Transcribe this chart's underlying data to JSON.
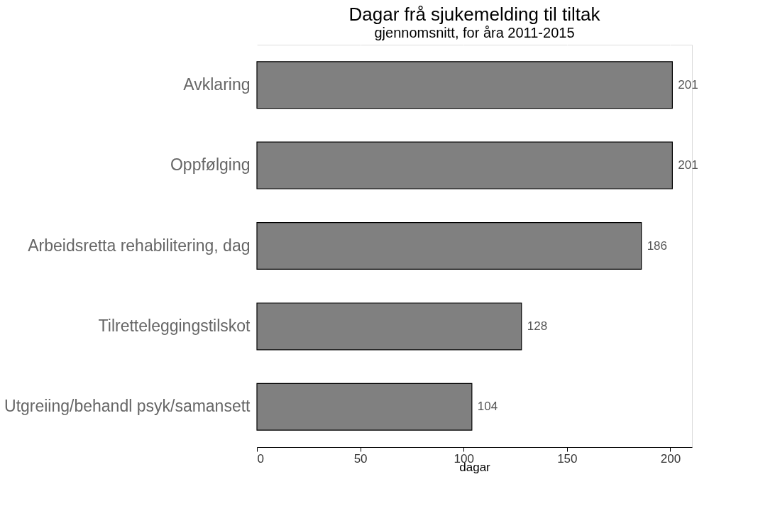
{
  "chart_data": {
    "type": "bar",
    "orientation": "horizontal",
    "title": "Dagar frå sjukemelding til tiltak",
    "subtitle": "gjennomsnitt, for åra 2011-2015",
    "xlabel": "dagar",
    "categories": [
      "Avklaring",
      "Oppfølging",
      "Arbeidsretta rehabilitering, dag",
      "Tilretteleggingstilskot",
      "Utgreiing/behandl psyk/samansett"
    ],
    "values": [
      201,
      201,
      186,
      128,
      104
    ],
    "color": "#808080",
    "xlim": [
      0,
      210.5
    ],
    "xticks": [
      0,
      50,
      100,
      150,
      200
    ],
    "grid": "x",
    "data_labels": true
  }
}
